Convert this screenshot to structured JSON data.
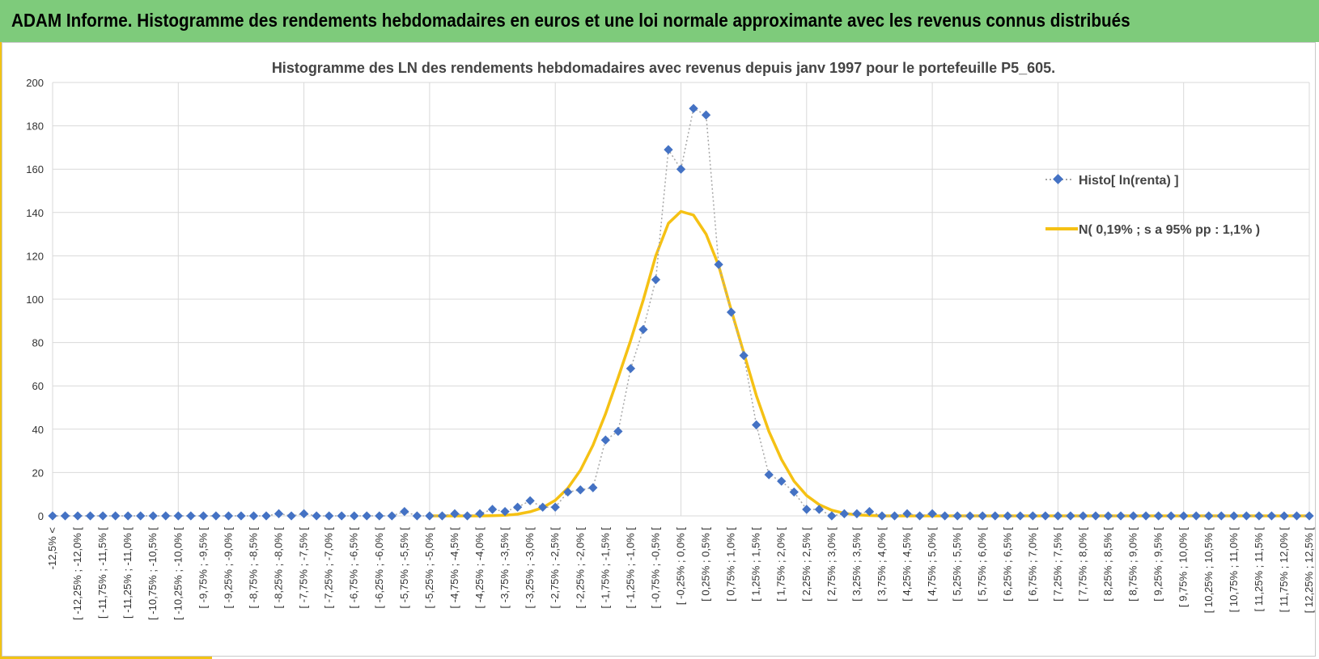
{
  "header": {
    "title": "ADAM Informe. Histogramme des rendements hebdomadaires en euros et une loi normale approximante avec les revenus connus distribués",
    "background": "#7ecb7b",
    "accent": "#f2c314"
  },
  "chart_data": {
    "type": "line",
    "title": "Histogramme des LN des rendements hebdomadaires avec revenus depuis janv 1997 pour le portefeuille P5_605.",
    "xlabel": "",
    "ylabel": "",
    "ylim": [
      0,
      200
    ],
    "yticks": [
      0,
      20,
      40,
      60,
      80,
      100,
      120,
      140,
      160,
      180,
      200
    ],
    "grid": true,
    "legend_position": "right",
    "categories": [
      "-12,5% <",
      "[ -12,25% ; -12,0% [",
      "[ -11,75% ; -11,5% [",
      "[ -11,25% ; -11,0% [",
      "[ -10,75% ; -10,5% [",
      "[ -10,25% ; -10,0% [",
      "[ -9,75% ; -9,5% [",
      "[ -9,25% ; -9,0% [",
      "[ -8,75% ; -8,5% [",
      "[ -8,25% ; -8,0% [",
      "[ -7,75% ; -7,5% [",
      "[ -7,25% ; -7,0% [",
      "[ -6,75% ; -6,5% [",
      "[ -6,25% ; -6,0% [",
      "[ -5,75% ; -5,5% [",
      "[ -5,25% ; -5,0% [",
      "[ -4,75% ; -4,5% [",
      "[ -4,25% ; -4,0% [",
      "[ -3,75% ; -3,5% [",
      "[ -3,25% ; -3,0% [",
      "[ -2,75% ; -2,5% [",
      "[ -2,25% ; -2,0% [",
      "[ -1,75% ; -1,5% [",
      "[ -1,25% ; -1,0% [",
      "[ -0,75% ; -0,5% [",
      "[ -0,25% ; 0,0% [",
      "[ 0,25% ; 0,5% [",
      "[ 0,75% ; 1,0% [",
      "[ 1,25% ; 1,5% [",
      "[ 1,75% ; 2,0% [",
      "[ 2,25% ; 2,5% [",
      "[ 2,75% ; 3,0% [",
      "[ 3,25% ; 3,5% [",
      "[ 3,75% ; 4,0% [",
      "[ 4,25% ; 4,5% [",
      "[ 4,75% ; 5,0% [",
      "[ 5,25% ; 5,5% [",
      "[ 5,75% ; 6,0% [",
      "[ 6,25% ; 6,5% [",
      "[ 6,75% ; 7,0% [",
      "[ 7,25% ; 7,5% [",
      "[ 7,75% ; 8,0% [",
      "[ 8,25% ; 8,5% [",
      "[ 8,75% ; 9,0% [",
      "[ 9,25% ; 9,5% [",
      "[ 9,75% ; 10,0% [",
      "[ 10,25% ; 10,5% [",
      "[ 10,75% ; 11,0% [",
      "[ 11,25% ; 11,5% [",
      "[ 11,75% ; 12,0% [",
      "[ 12,25% ; 12,5% ["
    ],
    "x_min": -12.5,
    "x_max": 12.5,
    "series": [
      {
        "name": "Histo[ ln(renta) ]",
        "style": "dotted-diamond",
        "color": "#4472c4",
        "line_color": "#a6a6a6",
        "points": [
          {
            "x": -12.5,
            "y": 0
          },
          {
            "x": -12.25,
            "y": 0
          },
          {
            "x": -12.0,
            "y": 0
          },
          {
            "x": -11.75,
            "y": 0
          },
          {
            "x": -11.5,
            "y": 0
          },
          {
            "x": -11.25,
            "y": 0
          },
          {
            "x": -11.0,
            "y": 0
          },
          {
            "x": -10.75,
            "y": 0
          },
          {
            "x": -10.5,
            "y": 0
          },
          {
            "x": -10.25,
            "y": 0
          },
          {
            "x": -10.0,
            "y": 0
          },
          {
            "x": -9.75,
            "y": 0
          },
          {
            "x": -9.5,
            "y": 0
          },
          {
            "x": -9.25,
            "y": 0
          },
          {
            "x": -9.0,
            "y": 0
          },
          {
            "x": -8.75,
            "y": 0
          },
          {
            "x": -8.5,
            "y": 0
          },
          {
            "x": -8.25,
            "y": 0
          },
          {
            "x": -8.0,
            "y": 1
          },
          {
            "x": -7.75,
            "y": 0
          },
          {
            "x": -7.5,
            "y": 1
          },
          {
            "x": -7.25,
            "y": 0
          },
          {
            "x": -7.0,
            "y": 0
          },
          {
            "x": -6.75,
            "y": 0
          },
          {
            "x": -6.5,
            "y": 0
          },
          {
            "x": -6.25,
            "y": 0
          },
          {
            "x": -6.0,
            "y": 0
          },
          {
            "x": -5.75,
            "y": 0
          },
          {
            "x": -5.5,
            "y": 2
          },
          {
            "x": -5.25,
            "y": 0
          },
          {
            "x": -5.0,
            "y": 0
          },
          {
            "x": -4.75,
            "y": 0
          },
          {
            "x": -4.5,
            "y": 1
          },
          {
            "x": -4.25,
            "y": 0
          },
          {
            "x": -4.0,
            "y": 1
          },
          {
            "x": -3.75,
            "y": 3
          },
          {
            "x": -3.5,
            "y": 2
          },
          {
            "x": -3.25,
            "y": 4
          },
          {
            "x": -3.0,
            "y": 7
          },
          {
            "x": -2.75,
            "y": 4
          },
          {
            "x": -2.5,
            "y": 4
          },
          {
            "x": -2.25,
            "y": 11
          },
          {
            "x": -2.0,
            "y": 12
          },
          {
            "x": -1.75,
            "y": 13
          },
          {
            "x": -1.5,
            "y": 35
          },
          {
            "x": -1.25,
            "y": 39
          },
          {
            "x": -1.0,
            "y": 68
          },
          {
            "x": -0.75,
            "y": 86
          },
          {
            "x": -0.5,
            "y": 109
          },
          {
            "x": -0.25,
            "y": 169
          },
          {
            "x": 0.0,
            "y": 160
          },
          {
            "x": 0.25,
            "y": 188
          },
          {
            "x": 0.5,
            "y": 185
          },
          {
            "x": 0.75,
            "y": 116
          },
          {
            "x": 1.0,
            "y": 94
          },
          {
            "x": 1.25,
            "y": 74
          },
          {
            "x": 1.5,
            "y": 42
          },
          {
            "x": 1.75,
            "y": 19
          },
          {
            "x": 2.0,
            "y": 16
          },
          {
            "x": 2.25,
            "y": 11
          },
          {
            "x": 2.5,
            "y": 3
          },
          {
            "x": 2.75,
            "y": 3
          },
          {
            "x": 3.0,
            "y": 0
          },
          {
            "x": 3.25,
            "y": 1
          },
          {
            "x": 3.5,
            "y": 1
          },
          {
            "x": 3.75,
            "y": 2
          },
          {
            "x": 4.0,
            "y": 0
          },
          {
            "x": 4.25,
            "y": 0
          },
          {
            "x": 4.5,
            "y": 1
          },
          {
            "x": 4.75,
            "y": 0
          },
          {
            "x": 5.0,
            "y": 1
          },
          {
            "x": 5.25,
            "y": 0
          },
          {
            "x": 5.5,
            "y": 0
          },
          {
            "x": 5.75,
            "y": 0
          },
          {
            "x": 6.0,
            "y": 0
          },
          {
            "x": 6.25,
            "y": 0
          },
          {
            "x": 6.5,
            "y": 0
          },
          {
            "x": 6.75,
            "y": 0
          },
          {
            "x": 7.0,
            "y": 0
          },
          {
            "x": 7.25,
            "y": 0
          },
          {
            "x": 7.5,
            "y": 0
          },
          {
            "x": 7.75,
            "y": 0
          },
          {
            "x": 8.0,
            "y": 0
          },
          {
            "x": 8.25,
            "y": 0
          },
          {
            "x": 8.5,
            "y": 0
          },
          {
            "x": 8.75,
            "y": 0
          },
          {
            "x": 9.0,
            "y": 0
          },
          {
            "x": 9.25,
            "y": 0
          },
          {
            "x": 9.5,
            "y": 0
          },
          {
            "x": 9.75,
            "y": 0
          },
          {
            "x": 10.0,
            "y": 0
          },
          {
            "x": 10.25,
            "y": 0
          },
          {
            "x": 10.5,
            "y": 0
          },
          {
            "x": 10.75,
            "y": 0
          },
          {
            "x": 11.0,
            "y": 0
          },
          {
            "x": 11.25,
            "y": 0
          },
          {
            "x": 11.5,
            "y": 0
          },
          {
            "x": 11.75,
            "y": 0
          },
          {
            "x": 12.0,
            "y": 0
          },
          {
            "x": 12.25,
            "y": 0
          },
          {
            "x": 12.5,
            "y": 0
          }
        ]
      },
      {
        "name": "N( 0,19% ; s a 95% pp : 1,1% )",
        "style": "line",
        "color": "#f5c114",
        "points": [
          {
            "x": -5.0,
            "y": 0
          },
          {
            "x": -4.0,
            "y": 0
          },
          {
            "x": -3.75,
            "y": 0.1
          },
          {
            "x": -3.5,
            "y": 0.3
          },
          {
            "x": -3.25,
            "y": 0.8
          },
          {
            "x": -3.0,
            "y": 1.9
          },
          {
            "x": -2.75,
            "y": 3.8
          },
          {
            "x": -2.5,
            "y": 7.2
          },
          {
            "x": -2.25,
            "y": 12.8
          },
          {
            "x": -2.0,
            "y": 21.1
          },
          {
            "x": -1.75,
            "y": 32.6
          },
          {
            "x": -1.5,
            "y": 47.1
          },
          {
            "x": -1.25,
            "y": 63.8
          },
          {
            "x": -1.0,
            "y": 81.0
          },
          {
            "x": -0.75,
            "y": 99.6
          },
          {
            "x": -0.5,
            "y": 120.0
          },
          {
            "x": -0.25,
            "y": 135.0
          },
          {
            "x": 0.0,
            "y": 140.5
          },
          {
            "x": 0.25,
            "y": 138.8
          },
          {
            "x": 0.5,
            "y": 130.0
          },
          {
            "x": 0.75,
            "y": 115.5
          },
          {
            "x": 1.0,
            "y": 95.0
          },
          {
            "x": 1.25,
            "y": 75.2
          },
          {
            "x": 1.5,
            "y": 55.5
          },
          {
            "x": 1.75,
            "y": 39.0
          },
          {
            "x": 2.0,
            "y": 26.1
          },
          {
            "x": 2.25,
            "y": 16.0
          },
          {
            "x": 2.5,
            "y": 9.4
          },
          {
            "x": 2.75,
            "y": 5.2
          },
          {
            "x": 3.0,
            "y": 2.6
          },
          {
            "x": 3.25,
            "y": 1.2
          },
          {
            "x": 3.5,
            "y": 0.5
          },
          {
            "x": 3.75,
            "y": 0.2
          },
          {
            "x": 4.0,
            "y": 0
          },
          {
            "x": 5.0,
            "y": 0
          },
          {
            "x": 12.5,
            "y": 0
          }
        ]
      }
    ]
  }
}
